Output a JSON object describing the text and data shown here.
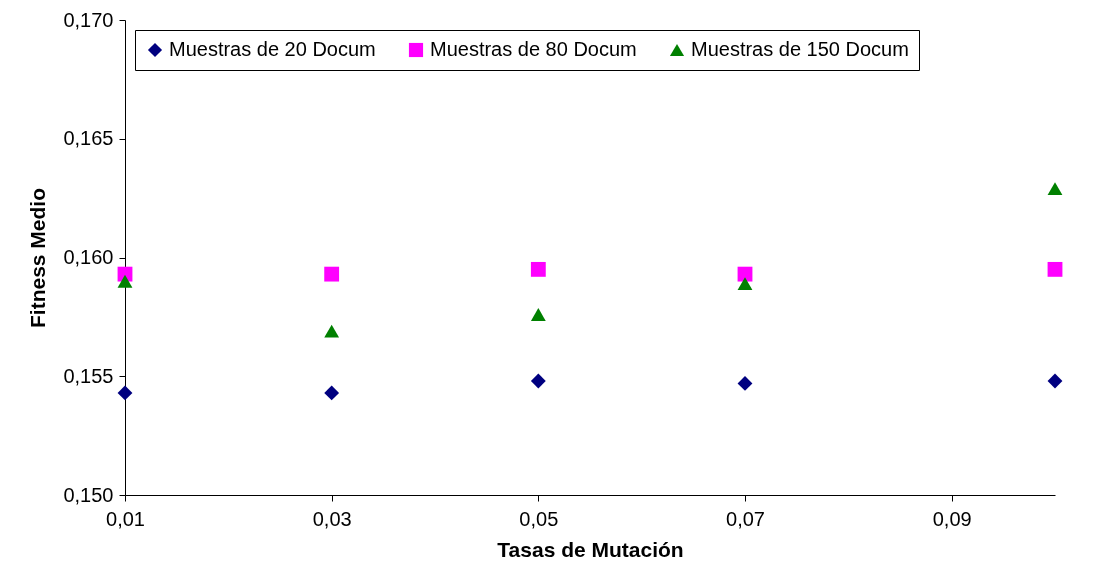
{
  "chart_data": {
    "type": "scatter",
    "xlabel": "Tasas de Mutación",
    "ylabel": "Fitness Medio",
    "x": [
      0.01,
      0.03,
      0.05,
      0.07,
      0.1
    ],
    "xlim": [
      0.01,
      0.1
    ],
    "xticks": [
      {
        "value": 0.01,
        "label": "0,01"
      },
      {
        "value": 0.03,
        "label": "0,03"
      },
      {
        "value": 0.05,
        "label": "0,05"
      },
      {
        "value": 0.07,
        "label": "0,07"
      },
      {
        "value": 0.09,
        "label": "0,09"
      }
    ],
    "ylim": [
      0.15,
      0.17
    ],
    "yticks": [
      {
        "value": 0.15,
        "label": "0,150"
      },
      {
        "value": 0.155,
        "label": "0,155"
      },
      {
        "value": 0.16,
        "label": "0,160"
      },
      {
        "value": 0.165,
        "label": "0,165"
      },
      {
        "value": 0.17,
        "label": "0,170"
      }
    ],
    "grid": false,
    "legend": "top",
    "series": [
      {
        "name": "Muestras de 20 Docum",
        "color": "#000080",
        "marker": "diamond",
        "values": [
          0.1543,
          0.1543,
          0.1548,
          0.1547,
          0.1548
        ]
      },
      {
        "name": "Muestras de 80 Docum",
        "color": "#ff00ff",
        "marker": "square",
        "values": [
          0.1593,
          0.1593,
          0.1595,
          0.1593,
          0.1595
        ]
      },
      {
        "name": "Muestras de 150 Docum",
        "color": "#008000",
        "marker": "triangle",
        "values": [
          0.159,
          0.1569,
          0.1576,
          0.1589,
          0.1629
        ]
      }
    ]
  }
}
